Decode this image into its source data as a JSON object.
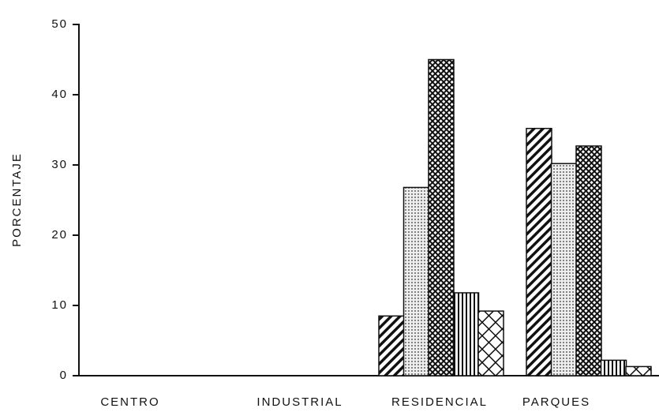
{
  "chart_data": {
    "type": "bar",
    "y_label": "PORCENTAJE",
    "categories": [
      "CENTRO",
      "INDUSTRIAL",
      "RESIDENCIAL",
      "PARQUES"
    ],
    "series": [
      {
        "pattern": "diagonal",
        "values": [
          0,
          0,
          8.5,
          35.2
        ]
      },
      {
        "pattern": "dots",
        "values": [
          0,
          0,
          26.8,
          30.2
        ]
      },
      {
        "pattern": "crosshatch-fine",
        "values": [
          0,
          0,
          45,
          32.7
        ]
      },
      {
        "pattern": "vertical",
        "values": [
          0,
          0,
          11.8,
          2.2
        ]
      },
      {
        "pattern": "crosshatch",
        "values": [
          0,
          0,
          9.2,
          1.3
        ]
      }
    ],
    "ylim": [
      0,
      50
    ],
    "yticks": [
      0,
      10,
      20,
      30,
      40,
      50
    ],
    "grid": false
  }
}
